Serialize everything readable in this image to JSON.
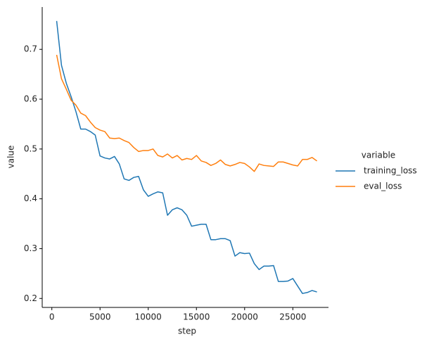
{
  "chart_data": {
    "type": "line",
    "x_label": "step",
    "y_label": "value",
    "legend_title": "variable",
    "legend": "right",
    "grid": false,
    "x": [
      500,
      1000,
      1500,
      2000,
      2500,
      3000,
      3500,
      4000,
      4500,
      5000,
      5500,
      6000,
      6500,
      7000,
      7500,
      8000,
      8500,
      9000,
      9500,
      10000,
      10500,
      11000,
      11500,
      12000,
      12500,
      13000,
      13500,
      14000,
      14500,
      15000,
      15500,
      16000,
      16500,
      17000,
      17500,
      18000,
      18500,
      19000,
      19500,
      20000,
      20500,
      21000,
      21500,
      22000,
      22500,
      23000,
      23500,
      24000,
      24500,
      25000,
      25500,
      26000,
      26500,
      27000,
      27500
    ],
    "series": [
      {
        "name": "training_loss",
        "color": "#1f77b4",
        "values": [
          0.757,
          0.668,
          0.632,
          0.605,
          0.575,
          0.54,
          0.54,
          0.535,
          0.528,
          0.486,
          0.482,
          0.48,
          0.485,
          0.47,
          0.44,
          0.437,
          0.443,
          0.445,
          0.418,
          0.405,
          0.41,
          0.414,
          0.412,
          0.367,
          0.378,
          0.382,
          0.378,
          0.367,
          0.345,
          0.347,
          0.349,
          0.349,
          0.318,
          0.318,
          0.32,
          0.32,
          0.316,
          0.285,
          0.292,
          0.29,
          0.291,
          0.27,
          0.258,
          0.265,
          0.265,
          0.266,
          0.234,
          0.234,
          0.235,
          0.24,
          0.225,
          0.21,
          0.212,
          0.216,
          0.213
        ]
      },
      {
        "name": "eval_loss",
        "color": "#ff7f0e",
        "values": [
          0.689,
          0.641,
          0.62,
          0.598,
          0.588,
          0.572,
          0.567,
          0.554,
          0.543,
          0.538,
          0.535,
          0.522,
          0.521,
          0.522,
          0.517,
          0.513,
          0.503,
          0.495,
          0.497,
          0.497,
          0.5,
          0.487,
          0.484,
          0.49,
          0.482,
          0.487,
          0.478,
          0.481,
          0.479,
          0.487,
          0.476,
          0.473,
          0.467,
          0.471,
          0.478,
          0.469,
          0.466,
          0.469,
          0.473,
          0.471,
          0.464,
          0.455,
          0.47,
          0.467,
          0.466,
          0.465,
          0.474,
          0.474,
          0.471,
          0.468,
          0.466,
          0.479,
          0.479,
          0.483,
          0.476
        ]
      }
    ],
    "xlim": [
      -1000,
      28700
    ],
    "ylim": [
      0.182,
      0.785
    ],
    "xticks": [
      0,
      5000,
      10000,
      15000,
      20000,
      25000
    ],
    "yticks": [
      0.2,
      0.3,
      0.4,
      0.5,
      0.6,
      0.7
    ]
  }
}
